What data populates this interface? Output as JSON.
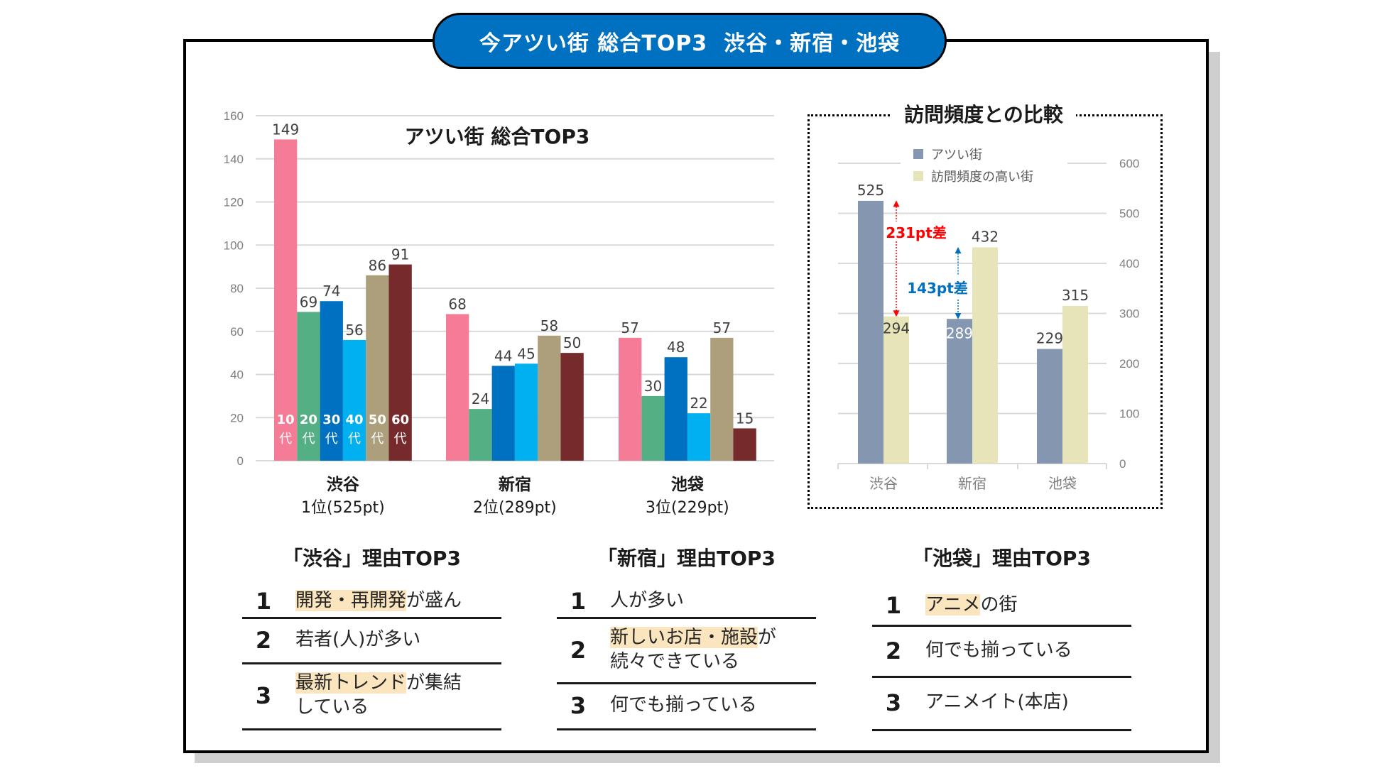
{
  "banner": {
    "title": "今アツい街 総合TOP3  渋谷・新宿・池袋"
  },
  "colors": {
    "banner": "#0070c0",
    "age_10": "#f47c97",
    "age_20": "#55af84",
    "age_30": "#0070c0",
    "age_40": "#00b0f0",
    "age_50": "#ad9f7c",
    "age_60": "#772a2c",
    "hot_town": "#8496b0",
    "frequent_town": "#e6e4b8",
    "diff_red": "#ff0000",
    "diff_blue": "#0070c0",
    "highlight": "#fbe5bf"
  },
  "chart_data": [
    {
      "type": "bar",
      "title": "アツい街  総合TOP3",
      "categories": [
        "渋谷",
        "新宿",
        "池袋"
      ],
      "category_sublabels": [
        "1位(525pt)",
        "2位(289pt)",
        "3位(229pt)"
      ],
      "series": [
        {
          "name": "10代",
          "label_line1": "10",
          "label_line2": "代",
          "values": [
            149,
            68,
            57
          ]
        },
        {
          "name": "20代",
          "label_line1": "20",
          "label_line2": "代",
          "values": [
            69,
            24,
            30
          ]
        },
        {
          "name": "30代",
          "label_line1": "30",
          "label_line2": "代",
          "values": [
            74,
            44,
            48
          ]
        },
        {
          "name": "40代",
          "label_line1": "40",
          "label_line2": "代",
          "values": [
            56,
            45,
            22
          ]
        },
        {
          "name": "50代",
          "label_line1": "50",
          "label_line2": "代",
          "values": [
            86,
            58,
            57
          ]
        },
        {
          "name": "60代",
          "label_line1": "60",
          "label_line2": "代",
          "values": [
            91,
            50,
            15
          ]
        }
      ],
      "ylim": [
        0,
        160
      ],
      "yticks": [
        0,
        20,
        40,
        60,
        80,
        100,
        120,
        140,
        160
      ],
      "xlabel": "",
      "ylabel": "",
      "grid": true,
      "data_labels": true
    },
    {
      "type": "bar",
      "title": "訪問頻度との比較",
      "categories": [
        "渋谷",
        "新宿",
        "池袋"
      ],
      "series": [
        {
          "name": "アツい街",
          "values": [
            525,
            289,
            229
          ]
        },
        {
          "name": "訪問頻度の高い街",
          "values": [
            294,
            432,
            315
          ]
        }
      ],
      "ylim": [
        0,
        600
      ],
      "yticks": [
        0,
        100,
        200,
        300,
        400,
        500,
        600
      ],
      "y_axis_side": "right",
      "legend": "top-center",
      "grid": true,
      "data_labels": true,
      "annotations": [
        {
          "text": "231pt差",
          "category": "渋谷",
          "from": 294,
          "to": 525,
          "color": "red"
        },
        {
          "text": "143pt差",
          "category": "新宿",
          "from": 289,
          "to": 432,
          "color": "blue"
        }
      ]
    }
  ],
  "reasons": [
    {
      "title": "「渋谷」理由TOP3",
      "items": [
        {
          "rank": "1",
          "highlight": "開発・再開発",
          "rest": "が盛ん",
          "line2": ""
        },
        {
          "rank": "2",
          "highlight": "",
          "rest": "若者(人)が多い",
          "line2": ""
        },
        {
          "rank": "3",
          "highlight": "最新トレンド",
          "rest": "が集結",
          "line2": "している"
        }
      ]
    },
    {
      "title": "「新宿」理由TOP3",
      "items": [
        {
          "rank": "1",
          "highlight": "",
          "rest": "人が多い",
          "line2": ""
        },
        {
          "rank": "2",
          "highlight": "新しいお店・施設",
          "rest": "が",
          "line2": "続々できている"
        },
        {
          "rank": "3",
          "highlight": "",
          "rest": "何でも揃っている",
          "line2": ""
        }
      ]
    },
    {
      "title": "「池袋」理由TOP3",
      "items": [
        {
          "rank": "1",
          "highlight": "アニメ",
          "rest": "の街",
          "line2": ""
        },
        {
          "rank": "2",
          "highlight": "",
          "rest": "何でも揃っている",
          "line2": ""
        },
        {
          "rank": "3",
          "highlight": "",
          "rest": "アニメイト(本店)",
          "line2": ""
        }
      ]
    }
  ]
}
